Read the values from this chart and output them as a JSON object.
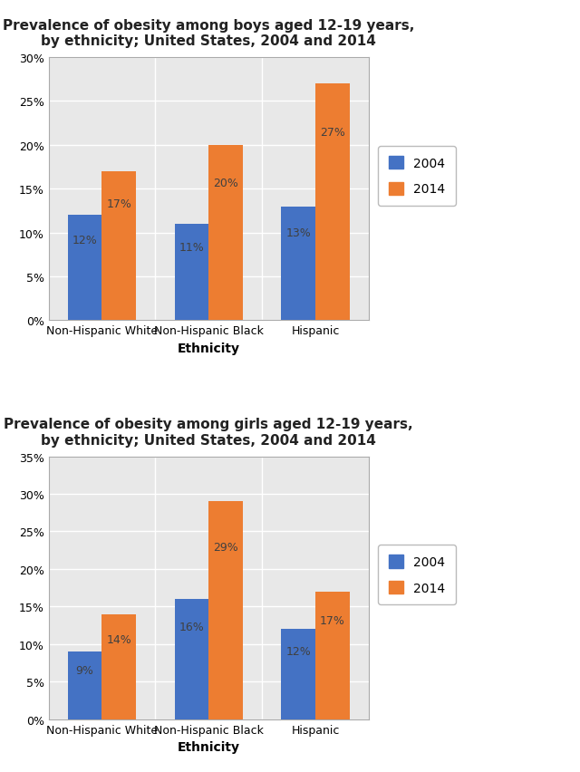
{
  "boys": {
    "title": "Prevalence of obesity among boys aged 12-19 years,\nby ethnicity; United States, 2004 and 2014",
    "categories": [
      "Non-Hispanic White",
      "Non-Hispanic Black",
      "Hispanic"
    ],
    "values_2004": [
      12,
      11,
      13
    ],
    "values_2014": [
      17,
      20,
      27
    ],
    "ylim": [
      0,
      30
    ],
    "yticks": [
      0,
      5,
      10,
      15,
      20,
      25,
      30
    ],
    "ytick_labels": [
      "0%",
      "5%",
      "10%",
      "15%",
      "20%",
      "25%",
      "30%"
    ]
  },
  "girls": {
    "title": "Prevalence of obesity among girls aged 12-19 years,\nby ethnicity; United States, 2004 and 2014",
    "categories": [
      "Non-Hispanic White",
      "Non-Hispanic Black",
      "Hispanic"
    ],
    "values_2004": [
      9,
      16,
      12
    ],
    "values_2014": [
      14,
      29,
      17
    ],
    "ylim": [
      0,
      35
    ],
    "yticks": [
      0,
      5,
      10,
      15,
      20,
      25,
      30,
      35
    ],
    "ytick_labels": [
      "0%",
      "5%",
      "10%",
      "15%",
      "20%",
      "25%",
      "30%",
      "35%"
    ]
  },
  "color_2004": "#4472C4",
  "color_2014": "#ED7D31",
  "xlabel": "Ethnicity",
  "legend_labels": [
    "2004",
    "2014"
  ],
  "bar_label_fontsize": 9,
  "axis_label_fontsize": 10,
  "title_fontsize": 11,
  "tick_fontsize": 9,
  "legend_fontsize": 10,
  "background_color": "#FFFFFF",
  "plot_bg_color": "#E8E8E8",
  "grid_color": "#FFFFFF",
  "label_color": "#404040",
  "bar_width": 0.32
}
